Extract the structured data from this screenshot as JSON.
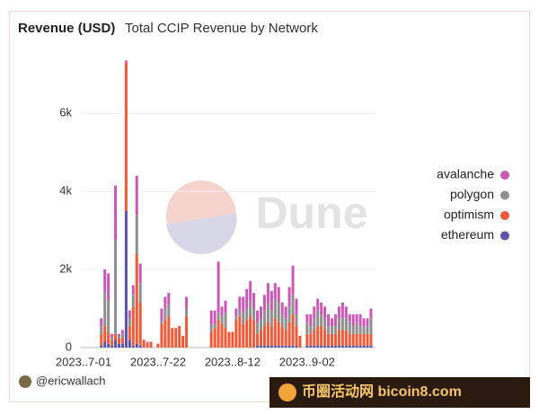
{
  "chart_data": {
    "type": "stacked-bar",
    "title": "Revenue (USD)",
    "subtitle": "Total CCIP Revenue by Network",
    "author": "@ericwallach",
    "watermark": "Dune",
    "banner": "币圈活动网 bicoin8.com",
    "legend": "right",
    "categories": [
      "2023..7-01",
      null,
      null,
      null,
      null,
      null,
      null,
      null,
      null,
      null,
      null,
      null,
      null,
      null,
      null,
      null,
      null,
      null,
      null,
      null,
      null,
      "2023..7-22",
      null,
      null,
      null,
      null,
      null,
      null,
      null,
      null,
      null,
      null,
      null,
      null,
      null,
      null,
      null,
      null,
      null,
      null,
      null,
      null,
      "2023..8-12",
      null,
      null,
      null,
      null,
      null,
      null,
      null,
      null,
      null,
      null,
      null,
      null,
      null,
      null,
      null,
      null,
      null,
      null,
      null,
      null,
      "2023..9-02",
      null,
      null,
      null,
      null,
      null,
      null,
      null,
      null,
      null,
      null,
      null,
      null,
      null,
      null,
      null,
      null,
      null,
      null
    ],
    "ylim": [
      0,
      7500
    ],
    "yticks": [
      0,
      {
        "value": 2000,
        "label": "2k"
      },
      {
        "value": 4000,
        "label": "4k"
      },
      {
        "value": 6000,
        "label": "6k"
      }
    ],
    "grid": true,
    "series": [
      {
        "name": "ethereum",
        "color": "#5a53a8",
        "values": [
          0,
          0,
          0,
          0,
          0,
          50,
          150,
          100,
          50,
          200,
          100,
          100,
          3500,
          200,
          50,
          100,
          50,
          0,
          0,
          0,
          0,
          0,
          0,
          0,
          0,
          0,
          0,
          0,
          0,
          0,
          0,
          0,
          0,
          0,
          0,
          0,
          0,
          0,
          0,
          0,
          0,
          0,
          0,
          0,
          0,
          0,
          0,
          0,
          0,
          50,
          50,
          50,
          50,
          50,
          50,
          50,
          50,
          50,
          50,
          50,
          50,
          0,
          0,
          50,
          50,
          50,
          50,
          50,
          50,
          50,
          50,
          50,
          50,
          50,
          50,
          50,
          50,
          50,
          50,
          50,
          50,
          50
        ]
      },
      {
        "name": "optimism",
        "color": "#ef5a38",
        "values": [
          0,
          0,
          0,
          0,
          0,
          300,
          400,
          300,
          150,
          150,
          150,
          150,
          3800,
          350,
          1000,
          2300,
          1100,
          200,
          100,
          150,
          0,
          100,
          600,
          700,
          800,
          500,
          500,
          550,
          300,
          800,
          0,
          0,
          0,
          0,
          0,
          0,
          400,
          500,
          700,
          600,
          500,
          400,
          400,
          700,
          800,
          600,
          700,
          800,
          700,
          300,
          400,
          500,
          600,
          500,
          700,
          600,
          500,
          400,
          600,
          800,
          500,
          300,
          0,
          300,
          300,
          400,
          500,
          500,
          400,
          300,
          300,
          300,
          400,
          400,
          400,
          300,
          300,
          300,
          300,
          300,
          300,
          300
        ]
      },
      {
        "name": "polygon",
        "color": "#8f8f8f",
        "values": [
          0,
          0,
          0,
          0,
          0,
          200,
          900,
          800,
          50,
          2400,
          50,
          100,
          0,
          200,
          300,
          1000,
          500,
          0,
          0,
          0,
          0,
          0,
          100,
          300,
          300,
          0,
          0,
          0,
          0,
          200,
          0,
          0,
          0,
          0,
          0,
          0,
          200,
          100,
          200,
          200,
          400,
          0,
          0,
          100,
          200,
          300,
          300,
          400,
          300,
          300,
          300,
          400,
          500,
          400,
          500,
          500,
          300,
          300,
          400,
          500,
          300,
          0,
          0,
          300,
          200,
          300,
          400,
          300,
          300,
          200,
          200,
          200,
          300,
          300,
          300,
          300,
          200,
          300,
          200,
          200,
          200,
          400
        ]
      },
      {
        "name": "avalanche",
        "color": "#c959b5",
        "values": [
          0,
          0,
          0,
          0,
          0,
          200,
          550,
          700,
          100,
          1400,
          50,
          100,
          50,
          200,
          250,
          1000,
          500,
          0,
          50,
          0,
          0,
          0,
          300,
          300,
          300,
          0,
          0,
          0,
          0,
          300,
          0,
          0,
          0,
          0,
          0,
          0,
          350,
          350,
          1300,
          250,
          300,
          0,
          0,
          200,
          300,
          400,
          500,
          500,
          400,
          300,
          300,
          400,
          500,
          500,
          400,
          400,
          300,
          300,
          500,
          750,
          400,
          0,
          0,
          200,
          300,
          300,
          300,
          300,
          300,
          300,
          200,
          300,
          300,
          400,
          300,
          200,
          300,
          200,
          300,
          200,
          200,
          250
        ]
      }
    ]
  }
}
